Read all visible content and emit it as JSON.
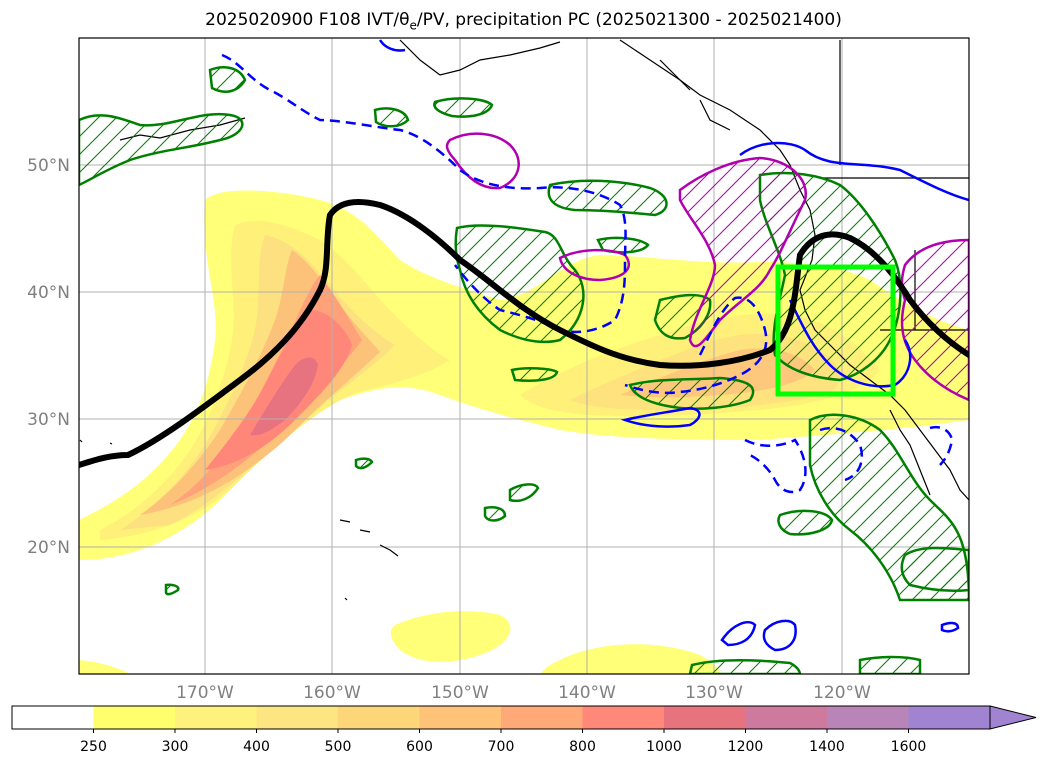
{
  "title": {
    "prefix": "2025020900 F108 IVT/θ",
    "sub": "e",
    "suffix": "/PV, precipitation PC (2025021300 - 2025021400)"
  },
  "map": {
    "lat_labels": [
      "50°N",
      "40°N",
      "30°N",
      "20°N"
    ],
    "lon_labels": [
      "170°W",
      "160°W",
      "150°W",
      "140°W",
      "130°W",
      "120°W"
    ],
    "label_color": "#808080"
  },
  "colorbar": {
    "ticks": [
      "250",
      "300",
      "400",
      "500",
      "600",
      "700",
      "800",
      "1000",
      "1200",
      "1400",
      "1600"
    ],
    "colors": [
      "#ffffff",
      "#ffff6e",
      "#fff27c",
      "#fde582",
      "#fed67a",
      "#ffc377",
      "#ffa878",
      "#ff8878",
      "#e7737e",
      "#cd7a9e",
      "#b984b8",
      "#a184d1"
    ],
    "extend": "max"
  },
  "legend_colors": {
    "jet": "#000000",
    "ivt_box": "#00ff00",
    "blue": "#0000ff",
    "green": "#008000",
    "magenta": "#b000b0"
  }
}
